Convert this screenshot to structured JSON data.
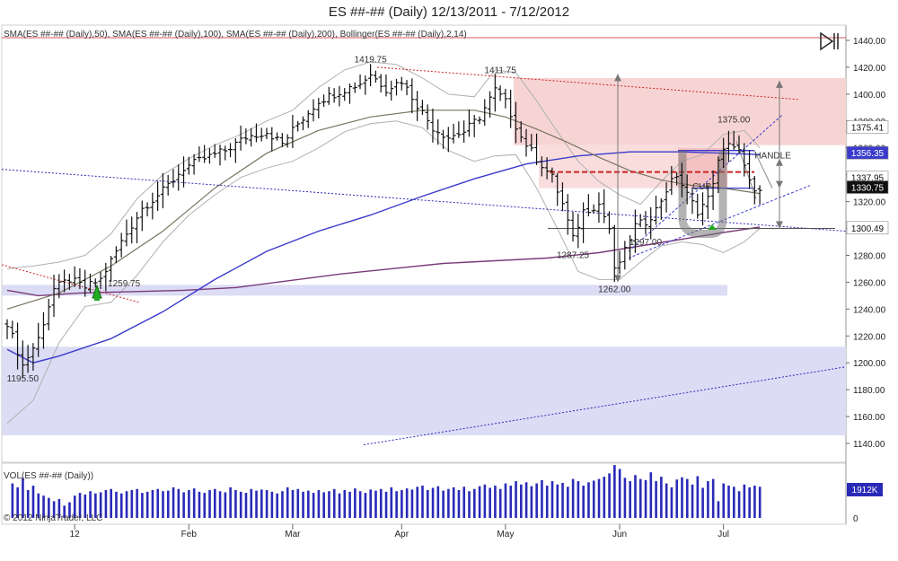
{
  "title": "ES ##-## (Daily)  12/13/2011 - 7/12/2012",
  "indicator_label": "SMA(ES ##-## (Daily),50), SMA(ES ##-## (Daily),100), SMA(ES ##-## (Daily),200), Bollinger(ES ##-## (Daily),2,14)",
  "volume_label": "VOL(ES ##-## (Daily))",
  "copyright": "© 2012 NinjaTrader, LLC",
  "volume_tag": "1912K",
  "volume_zero": "0",
  "colors": {
    "up_down_bars": "#111111",
    "sma50": "#7a7560",
    "sma100": "#3a3acc",
    "sma200": "#7a3a7a",
    "bollinger": "#a8a8a8",
    "zone_blue": "#dcdcf5",
    "zone_pink": "#f7d4d4",
    "volume": "#2a2ab8"
  },
  "chart_data": {
    "type": "candlestick",
    "ylim": [
      1132,
      1446
    ],
    "yticks": [
      "1440.00",
      "1420.00",
      "1400.00",
      "1380.00",
      "1360.00",
      "1340.00",
      "1320.00",
      "1300.00",
      "1280.00",
      "1260.00",
      "1240.00",
      "1220.00",
      "1200.00",
      "1180.00",
      "1160.00",
      "1140.00"
    ],
    "xticks": [
      {
        "label": "12",
        "bar": 13
      },
      {
        "label": "Feb",
        "bar": 35
      },
      {
        "label": "Mar",
        "bar": 55
      },
      {
        "label": "Apr",
        "bar": 76
      },
      {
        "label": "May",
        "bar": 96
      },
      {
        "label": "Jun",
        "bar": 118
      },
      {
        "label": "Jul",
        "bar": 138
      }
    ],
    "price_labels": [
      {
        "text": "1195.50",
        "bar": 3,
        "value": 1195.5,
        "pos": "below"
      },
      {
        "text": "1259.75",
        "bar": 18,
        "value": 1259.75,
        "pos": "right"
      },
      {
        "text": "1419.75",
        "bar": 70,
        "value": 1419.75,
        "pos": "above"
      },
      {
        "text": "1411.75",
        "bar": 95,
        "value": 1411.75,
        "pos": "above"
      },
      {
        "text": "1287.25",
        "bar": 109,
        "value": 1287.25,
        "pos": "below"
      },
      {
        "text": "1262.00",
        "bar": 117,
        "value": 1262,
        "pos": "below"
      },
      {
        "text": "1297.00",
        "bar": 123,
        "value": 1297,
        "pos": "below"
      },
      {
        "text": "1375.00",
        "bar": 140,
        "value": 1375,
        "pos": "above"
      }
    ],
    "annotations": [
      {
        "text": "HANDLE",
        "bar": 144,
        "value": 1352
      },
      {
        "text": "CUP",
        "bar": 132,
        "value": 1329
      }
    ],
    "axis_tags": [
      {
        "text": "1375.41",
        "value": 1375.41,
        "color": "#ffffff",
        "text_color": "#111"
      },
      {
        "text": "1356.35",
        "value": 1356.35,
        "color": "#3a3acc",
        "text_color": "#fff"
      },
      {
        "text": "1337.95",
        "value": 1337.95,
        "color": "#ffffff",
        "text_color": "#111"
      },
      {
        "text": "1330.75",
        "value": 1330.75,
        "color": "#111111",
        "text_color": "#fff"
      },
      {
        "text": "1300.49",
        "value": 1300.49,
        "color": "#ffffff",
        "text_color": "#111"
      }
    ],
    "keypoints": [
      [
        0,
        1230
      ],
      [
        3,
        1198
      ],
      [
        6,
        1218
      ],
      [
        9,
        1255
      ],
      [
        12,
        1262
      ],
      [
        15,
        1256
      ],
      [
        18,
        1262
      ],
      [
        22,
        1290
      ],
      [
        26,
        1315
      ],
      [
        30,
        1328
      ],
      [
        34,
        1345
      ],
      [
        38,
        1352
      ],
      [
        42,
        1358
      ],
      [
        46,
        1368
      ],
      [
        50,
        1372
      ],
      [
        53,
        1363
      ],
      [
        56,
        1378
      ],
      [
        60,
        1395
      ],
      [
        64,
        1402
      ],
      [
        68,
        1408
      ],
      [
        70,
        1415
      ],
      [
        73,
        1404
      ],
      [
        76,
        1410
      ],
      [
        79,
        1392
      ],
      [
        82,
        1375
      ],
      [
        85,
        1368
      ],
      [
        88,
        1372
      ],
      [
        91,
        1383
      ],
      [
        94,
        1403
      ],
      [
        96,
        1394
      ],
      [
        99,
        1368
      ],
      [
        102,
        1352
      ],
      [
        105,
        1338
      ],
      [
        107,
        1318
      ],
      [
        109,
        1292
      ],
      [
        111,
        1313
      ],
      [
        114,
        1318
      ],
      [
        116,
        1300
      ],
      [
        117,
        1268
      ],
      [
        119,
        1283
      ],
      [
        121,
        1302
      ],
      [
        123,
        1305
      ],
      [
        125,
        1314
      ],
      [
        127,
        1329
      ],
      [
        129,
        1340
      ],
      [
        131,
        1325
      ],
      [
        133,
        1313
      ],
      [
        135,
        1322
      ],
      [
        137,
        1349
      ],
      [
        139,
        1365
      ],
      [
        141,
        1357
      ],
      [
        143,
        1334
      ],
      [
        145,
        1327
      ]
    ],
    "sma50": [
      [
        0,
        1240
      ],
      [
        10,
        1252
      ],
      [
        20,
        1272
      ],
      [
        30,
        1298
      ],
      [
        40,
        1330
      ],
      [
        50,
        1356
      ],
      [
        60,
        1373
      ],
      [
        70,
        1383
      ],
      [
        80,
        1388
      ],
      [
        90,
        1388
      ],
      [
        96,
        1383
      ],
      [
        102,
        1374
      ],
      [
        108,
        1364
      ],
      [
        114,
        1353
      ],
      [
        120,
        1343
      ],
      [
        126,
        1336
      ],
      [
        132,
        1332
      ],
      [
        138,
        1330
      ],
      [
        145,
        1326
      ]
    ],
    "sma100": [
      [
        0,
        1210
      ],
      [
        5,
        1200
      ],
      [
        10,
        1205
      ],
      [
        20,
        1218
      ],
      [
        30,
        1238
      ],
      [
        40,
        1262
      ],
      [
        50,
        1283
      ],
      [
        60,
        1298
      ],
      [
        70,
        1310
      ],
      [
        80,
        1324
      ],
      [
        90,
        1337
      ],
      [
        100,
        1348
      ],
      [
        110,
        1354
      ],
      [
        120,
        1357
      ],
      [
        130,
        1357
      ],
      [
        138,
        1356
      ],
      [
        145,
        1355
      ]
    ],
    "sma200": [
      [
        0,
        1254
      ],
      [
        6,
        1250
      ],
      [
        14,
        1252
      ],
      [
        24,
        1253
      ],
      [
        34,
        1254
      ],
      [
        44,
        1256
      ],
      [
        54,
        1261
      ],
      [
        64,
        1266
      ],
      [
        74,
        1270
      ],
      [
        84,
        1274
      ],
      [
        94,
        1276
      ],
      [
        104,
        1278
      ],
      [
        114,
        1282
      ],
      [
        122,
        1287
      ],
      [
        130,
        1292
      ],
      [
        138,
        1297
      ],
      [
        145,
        1301
      ]
    ],
    "boll_upper": [
      [
        0,
        1270
      ],
      [
        5,
        1272
      ],
      [
        10,
        1275
      ],
      [
        15,
        1280
      ],
      [
        20,
        1296
      ],
      [
        25,
        1322
      ],
      [
        30,
        1340
      ],
      [
        35,
        1352
      ],
      [
        40,
        1362
      ],
      [
        45,
        1370
      ],
      [
        50,
        1380
      ],
      [
        55,
        1388
      ],
      [
        60,
        1405
      ],
      [
        65,
        1418
      ],
      [
        70,
        1424
      ],
      [
        75,
        1422
      ],
      [
        80,
        1412
      ],
      [
        85,
        1400
      ],
      [
        90,
        1398
      ],
      [
        94,
        1418
      ],
      [
        98,
        1416
      ],
      [
        102,
        1395
      ],
      [
        106,
        1372
      ],
      [
        110,
        1350
      ],
      [
        114,
        1335
      ],
      [
        118,
        1325
      ],
      [
        122,
        1318
      ],
      [
        126,
        1335
      ],
      [
        130,
        1350
      ],
      [
        134,
        1355
      ],
      [
        138,
        1370
      ],
      [
        142,
        1373
      ],
      [
        145,
        1360
      ]
    ],
    "boll_lower": [
      [
        0,
        1155
      ],
      [
        5,
        1172
      ],
      [
        10,
        1215
      ],
      [
        15,
        1242
      ],
      [
        20,
        1245
      ],
      [
        25,
        1265
      ],
      [
        30,
        1290
      ],
      [
        35,
        1310
      ],
      [
        40,
        1325
      ],
      [
        45,
        1338
      ],
      [
        50,
        1345
      ],
      [
        55,
        1350
      ],
      [
        60,
        1360
      ],
      [
        65,
        1372
      ],
      [
        70,
        1378
      ],
      [
        75,
        1380
      ],
      [
        80,
        1375
      ],
      [
        85,
        1358
      ],
      [
        90,
        1350
      ],
      [
        94,
        1354
      ],
      [
        98,
        1355
      ],
      [
        102,
        1330
      ],
      [
        106,
        1300
      ],
      [
        110,
        1268
      ],
      [
        114,
        1262
      ],
      [
        118,
        1262
      ],
      [
        122,
        1275
      ],
      [
        126,
        1287
      ],
      [
        130,
        1290
      ],
      [
        134,
        1288
      ],
      [
        138,
        1282
      ],
      [
        142,
        1290
      ],
      [
        145,
        1300
      ]
    ],
    "volume": [
      {
        "bar": 1,
        "v": 0.62
      },
      {
        "bar": 2,
        "v": 0.55
      },
      {
        "bar": 3,
        "v": 0.72
      },
      {
        "bar": 4,
        "v": 0.5
      },
      {
        "bar": 5,
        "v": 0.58
      },
      {
        "bar": 6,
        "v": 0.44
      },
      {
        "bar": 7,
        "v": 0.4
      },
      {
        "bar": 8,
        "v": 0.36
      },
      {
        "bar": 9,
        "v": 0.3
      },
      {
        "bar": 10,
        "v": 0.34
      },
      {
        "bar": 11,
        "v": 0.22
      },
      {
        "bar": 12,
        "v": 0.28
      },
      {
        "bar": 13,
        "v": 0.4
      },
      {
        "bar": 14,
        "v": 0.45
      },
      {
        "bar": 15,
        "v": 0.42
      },
      {
        "bar": 16,
        "v": 0.48
      },
      {
        "bar": 17,
        "v": 0.44
      },
      {
        "bar": 18,
        "v": 0.46
      },
      {
        "bar": 19,
        "v": 0.5
      },
      {
        "bar": 20,
        "v": 0.52
      },
      {
        "bar": 21,
        "v": 0.47
      },
      {
        "bar": 22,
        "v": 0.44
      },
      {
        "bar": 23,
        "v": 0.48
      },
      {
        "bar": 24,
        "v": 0.5
      },
      {
        "bar": 25,
        "v": 0.52
      },
      {
        "bar": 26,
        "v": 0.45
      },
      {
        "bar": 27,
        "v": 0.47
      },
      {
        "bar": 28,
        "v": 0.5
      },
      {
        "bar": 29,
        "v": 0.52
      },
      {
        "bar": 30,
        "v": 0.48
      },
      {
        "bar": 31,
        "v": 0.49
      },
      {
        "bar": 32,
        "v": 0.55
      },
      {
        "bar": 33,
        "v": 0.52
      },
      {
        "bar": 34,
        "v": 0.46
      },
      {
        "bar": 35,
        "v": 0.5
      },
      {
        "bar": 36,
        "v": 0.53
      },
      {
        "bar": 37,
        "v": 0.47
      },
      {
        "bar": 38,
        "v": 0.45
      },
      {
        "bar": 39,
        "v": 0.5
      },
      {
        "bar": 40,
        "v": 0.52
      },
      {
        "bar": 41,
        "v": 0.48
      },
      {
        "bar": 42,
        "v": 0.46
      },
      {
        "bar": 43,
        "v": 0.55
      },
      {
        "bar": 44,
        "v": 0.5
      },
      {
        "bar": 45,
        "v": 0.47
      },
      {
        "bar": 46,
        "v": 0.45
      },
      {
        "bar": 47,
        "v": 0.52
      },
      {
        "bar": 48,
        "v": 0.49
      },
      {
        "bar": 49,
        "v": 0.51
      },
      {
        "bar": 50,
        "v": 0.5
      },
      {
        "bar": 51,
        "v": 0.47
      },
      {
        "bar": 52,
        "v": 0.44
      },
      {
        "bar": 53,
        "v": 0.48
      },
      {
        "bar": 54,
        "v": 0.55
      },
      {
        "bar": 55,
        "v": 0.5
      },
      {
        "bar": 56,
        "v": 0.52
      },
      {
        "bar": 57,
        "v": 0.47
      },
      {
        "bar": 58,
        "v": 0.49
      },
      {
        "bar": 59,
        "v": 0.45
      },
      {
        "bar": 60,
        "v": 0.5
      },
      {
        "bar": 61,
        "v": 0.46
      },
      {
        "bar": 62,
        "v": 0.48
      },
      {
        "bar": 63,
        "v": 0.52
      },
      {
        "bar": 64,
        "v": 0.44
      },
      {
        "bar": 65,
        "v": 0.5
      },
      {
        "bar": 66,
        "v": 0.47
      },
      {
        "bar": 67,
        "v": 0.53
      },
      {
        "bar": 68,
        "v": 0.48
      },
      {
        "bar": 69,
        "v": 0.45
      },
      {
        "bar": 70,
        "v": 0.51
      },
      {
        "bar": 71,
        "v": 0.49
      },
      {
        "bar": 72,
        "v": 0.52
      },
      {
        "bar": 73,
        "v": 0.47
      },
      {
        "bar": 74,
        "v": 0.55
      },
      {
        "bar": 75,
        "v": 0.48
      },
      {
        "bar": 76,
        "v": 0.5
      },
      {
        "bar": 77,
        "v": 0.53
      },
      {
        "bar": 78,
        "v": 0.51
      },
      {
        "bar": 79,
        "v": 0.56
      },
      {
        "bar": 80,
        "v": 0.58
      },
      {
        "bar": 81,
        "v": 0.5
      },
      {
        "bar": 82,
        "v": 0.54
      },
      {
        "bar": 83,
        "v": 0.57
      },
      {
        "bar": 84,
        "v": 0.49
      },
      {
        "bar": 85,
        "v": 0.52
      },
      {
        "bar": 86,
        "v": 0.55
      },
      {
        "bar": 87,
        "v": 0.5
      },
      {
        "bar": 88,
        "v": 0.56
      },
      {
        "bar": 89,
        "v": 0.48
      },
      {
        "bar": 90,
        "v": 0.52
      },
      {
        "bar": 91,
        "v": 0.57
      },
      {
        "bar": 92,
        "v": 0.6
      },
      {
        "bar": 93,
        "v": 0.54
      },
      {
        "bar": 94,
        "v": 0.58
      },
      {
        "bar": 95,
        "v": 0.52
      },
      {
        "bar": 96,
        "v": 0.62
      },
      {
        "bar": 97,
        "v": 0.58
      },
      {
        "bar": 98,
        "v": 0.66
      },
      {
        "bar": 99,
        "v": 0.6
      },
      {
        "bar": 100,
        "v": 0.64
      },
      {
        "bar": 101,
        "v": 0.57
      },
      {
        "bar": 102,
        "v": 0.62
      },
      {
        "bar": 103,
        "v": 0.68
      },
      {
        "bar": 104,
        "v": 0.58
      },
      {
        "bar": 105,
        "v": 0.66
      },
      {
        "bar": 106,
        "v": 0.6
      },
      {
        "bar": 107,
        "v": 0.63
      },
      {
        "bar": 108,
        "v": 0.56
      },
      {
        "bar": 109,
        "v": 0.7
      },
      {
        "bar": 110,
        "v": 0.66
      },
      {
        "bar": 111,
        "v": 0.58
      },
      {
        "bar": 112,
        "v": 0.64
      },
      {
        "bar": 113,
        "v": 0.67
      },
      {
        "bar": 114,
        "v": 0.7
      },
      {
        "bar": 115,
        "v": 0.74
      },
      {
        "bar": 116,
        "v": 0.8
      },
      {
        "bar": 117,
        "v": 0.95
      },
      {
        "bar": 118,
        "v": 0.88
      },
      {
        "bar": 119,
        "v": 0.72
      },
      {
        "bar": 120,
        "v": 0.66
      },
      {
        "bar": 121,
        "v": 0.77
      },
      {
        "bar": 122,
        "v": 0.7
      },
      {
        "bar": 123,
        "v": 0.68
      },
      {
        "bar": 124,
        "v": 0.82
      },
      {
        "bar": 125,
        "v": 0.66
      },
      {
        "bar": 126,
        "v": 0.74
      },
      {
        "bar": 127,
        "v": 0.62
      },
      {
        "bar": 128,
        "v": 0.55
      },
      {
        "bar": 129,
        "v": 0.69
      },
      {
        "bar": 130,
        "v": 0.73
      },
      {
        "bar": 131,
        "v": 0.7
      },
      {
        "bar": 132,
        "v": 0.6
      },
      {
        "bar": 133,
        "v": 0.75
      },
      {
        "bar": 134,
        "v": 0.54
      },
      {
        "bar": 135,
        "v": 0.66
      },
      {
        "bar": 136,
        "v": 0.7
      },
      {
        "bar": 137,
        "v": 0.3
      },
      {
        "bar": 138,
        "v": 0.62
      },
      {
        "bar": 139,
        "v": 0.58
      },
      {
        "bar": 140,
        "v": 0.56
      },
      {
        "bar": 141,
        "v": 0.48
      },
      {
        "bar": 142,
        "v": 0.6
      },
      {
        "bar": 143,
        "v": 0.55
      },
      {
        "bar": 144,
        "v": 0.58
      },
      {
        "bar": 145,
        "v": 0.56
      }
    ]
  }
}
